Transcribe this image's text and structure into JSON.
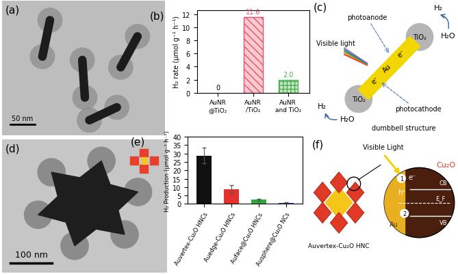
{
  "panels": {
    "a": {
      "label": "(a)",
      "scale_bar": "50 nm"
    },
    "c": {
      "label": "(c)",
      "tio2": "TiO₂",
      "au": "Au",
      "electron": "e⁻",
      "light": "Visible light",
      "anode": "photoanode",
      "cathode": "photocathode",
      "h2": "H₂",
      "h2o": "H₂O",
      "structure": "dumbbell structure"
    },
    "d": {
      "label": "(d)",
      "scale_bar": "100 nm"
    },
    "f": {
      "label": "(f)",
      "light": "Visible Light",
      "name": "Auvertex-Cu₂O HNC",
      "cu2o": "Cu₂O",
      "au": "Au",
      "cb": "CB",
      "vb": "VB",
      "ef": "E_F",
      "hole": "h⁺",
      "electron": "e⁻",
      "step1": "1",
      "step2": "2"
    }
  },
  "chart_data": [
    {
      "type": "bar",
      "title": "(b)",
      "y_label": "H₂ rate (μmol g⁻¹ h⁻¹)",
      "categories": [
        "AuNR\n@TiO₂",
        "AuNR\n/TiO₂",
        "AuNR\nand TiO₂"
      ],
      "values": [
        0,
        11.6,
        2.0
      ],
      "colors": [
        "#3a5fcd",
        "#e8506a",
        "#4caf50"
      ],
      "ylim": [
        0,
        12.6
      ],
      "yticks": [
        0,
        2,
        4,
        6,
        8,
        10,
        12
      ],
      "data_labels": true,
      "grid": false
    },
    {
      "type": "bar",
      "title": "(e)",
      "y_label": "H₂ Production (μmol g⁻¹ h⁻¹)",
      "categories": [
        "Auvertex-Cu₂O HNCs",
        "Auedge-Cu₂O HNCs",
        "Auface@Cu₂O HNCs",
        "Ausphere@Cu₂O NCs"
      ],
      "values": [
        28.8,
        8.7,
        2.5,
        0.8
      ],
      "errors": [
        4.5,
        2.3,
        0.5,
        0.2
      ],
      "colors": [
        "#111111",
        "#e8302a",
        "#2eaa3a",
        "#2040c0"
      ],
      "ylim": [
        0,
        40
      ],
      "yticks": [
        0,
        5,
        10,
        15,
        20,
        25,
        30,
        35,
        40
      ],
      "data_labels": false,
      "grid": false
    }
  ]
}
